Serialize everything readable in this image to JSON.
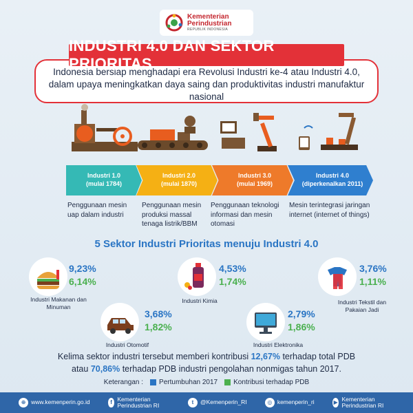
{
  "logo": {
    "line1": "Kementerian",
    "line2": "Perindustrian",
    "line3": "REPUBLIK INDONESIA"
  },
  "title": "INDUSTRI 4.0 DAN SEKTOR PRIORITAS",
  "intro": "Indonesia bersiap menghadapi era Revolusi Industri ke-4 atau Industri 4.0, dalam upaya meningkatkan daya saing dan produktivitas industri manufaktur nasional",
  "timeline": [
    {
      "name": "Industri 1.0",
      "period": "(mulai 1784)",
      "desc": "Penggunaan mesin uap dalam industri",
      "color": "#35b9b5"
    },
    {
      "name": "Industri 2.0",
      "period": "(mulai 1870)",
      "desc": "Penggunaan mesin produksi massal tenaga listrik/BBM",
      "color": "#f5b014"
    },
    {
      "name": "Industri 3.0",
      "period": "(mulai 1969)",
      "desc": "Penggunaan teknologi informasi dan mesin otomasi",
      "color": "#ee7a2a"
    },
    {
      "name": "Industri 4.0",
      "period": "(diperkenalkan 2011)",
      "desc": "Mesin terintegrasi jaringan internet (internet of things)",
      "color": "#2f7fcf"
    }
  ],
  "sector_heading": "5 Sektor Industri Prioritas menuju Industri 4.0",
  "sectors": [
    {
      "label": "Industri Makanan dan Minuman",
      "growth": "9,23%",
      "contribution": "6,14%",
      "icon": "food-icon"
    },
    {
      "label": "Industri Kimia",
      "growth": "4,53%",
      "contribution": "1,74%",
      "icon": "chemical-icon"
    },
    {
      "label": "Industri Tekstil dan Pakaian Jadi",
      "growth": "3,76%",
      "contribution": "1,11%",
      "icon": "textile-icon"
    },
    {
      "label": "Industri Otomotif",
      "growth": "3,68%",
      "contribution": "1,82%",
      "icon": "car-icon"
    },
    {
      "label": "Industri Elektronika",
      "growth": "2,79%",
      "contribution": "1,86%",
      "icon": "monitor-icon"
    }
  ],
  "summary": {
    "p1": "Kelima sektor industri tersebut memberi kontribusi ",
    "v1": "12,67%",
    "p2": " terhadap total PDB",
    "p3": "atau ",
    "v2": "70,86%",
    "p4": "  terhadap PDB industri pengolahan nonmigas tahun 2017."
  },
  "legend": {
    "title": "Keterangan :",
    "growth_label": "Pertumbuhan 2017",
    "contribution_label": "Kontribusi terhadap PDB",
    "growth_color": "#2a75c4",
    "contribution_color": "#4bb04f"
  },
  "footer": [
    {
      "icon": "globe-icon",
      "glyph": "⊕",
      "text": "www.kemenperin.go.id"
    },
    {
      "icon": "facebook-icon",
      "glyph": "f",
      "text": "Kementerian Perindustrian RI"
    },
    {
      "icon": "twitter-icon",
      "glyph": "t",
      "text": "@Kemenperin_RI"
    },
    {
      "icon": "instagram-icon",
      "glyph": "◎",
      "text": "kemenperin_ri"
    },
    {
      "icon": "youtube-icon",
      "glyph": "▶",
      "text": "Kementerian Perindustrian RI"
    }
  ]
}
